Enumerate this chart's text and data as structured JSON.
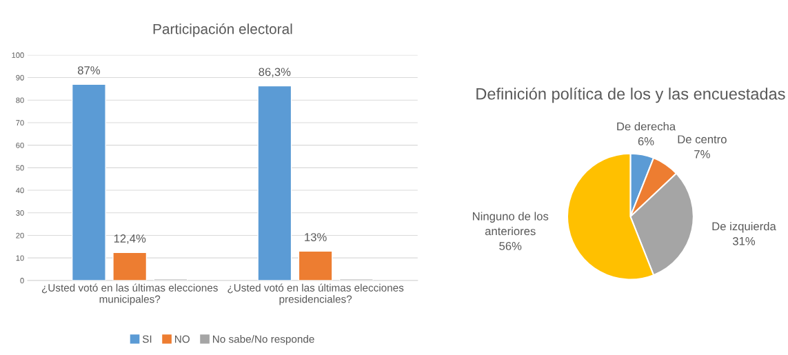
{
  "chart_data": [
    {
      "type": "bar",
      "title": "Participación electoral",
      "categories": [
        "¿Usted votó en las últimas elecciones\nmunicipales?",
        "¿Usted votó en las últimas elecciones\npresidenciales?"
      ],
      "series": [
        {
          "name": "SI",
          "color": "#5b9bd5",
          "values": [
            87,
            86.3
          ],
          "value_labels": [
            "87%",
            "86,3%"
          ]
        },
        {
          "name": "NO",
          "color": "#ed7d31",
          "values": [
            12.4,
            13
          ],
          "value_labels": [
            "12,4%",
            "13%"
          ]
        },
        {
          "name": "No sabe/No responde",
          "color": "#a5a5a5",
          "values": [
            0.6,
            0.6
          ]
        }
      ],
      "ylim": [
        0,
        100
      ],
      "yticks": [
        0,
        10,
        20,
        30,
        40,
        50,
        60,
        70,
        80,
        90,
        100
      ],
      "grid": "y",
      "legend": "bottom"
    },
    {
      "type": "pie",
      "title": "Definición política de los y las encuestadas",
      "categories": [
        "De derecha",
        "De centro",
        "De izquierda",
        "Ninguno de los\nanteriores"
      ],
      "values": [
        6,
        7,
        31,
        56
      ],
      "value_labels": [
        "6%",
        "7%",
        "31%",
        "56%"
      ],
      "colors": [
        "#5b9bd5",
        "#ed7d31",
        "#a5a5a5",
        "#ffc000"
      ]
    }
  ]
}
